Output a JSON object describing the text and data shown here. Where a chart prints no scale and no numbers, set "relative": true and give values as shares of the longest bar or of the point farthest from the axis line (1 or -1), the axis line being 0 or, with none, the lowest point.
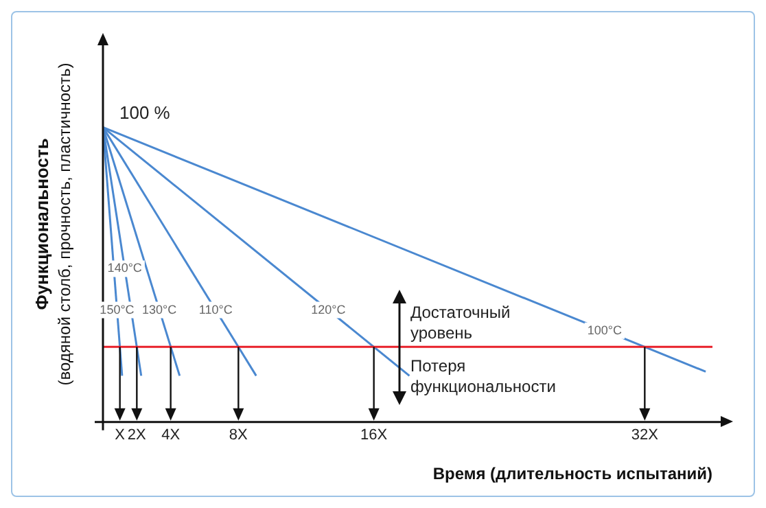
{
  "chart_data": {
    "type": "line",
    "relative": true,
    "xlabel": "Время (длительность испытаний)",
    "ylabel": "Функциональность\n(водяной столб, прочность, пластичность)",
    "xlim": [
      0,
      36
    ],
    "xticks": [
      {
        "value": 1,
        "label": "X"
      },
      {
        "value": 2,
        "label": "2X"
      },
      {
        "value": 4,
        "label": "4X"
      },
      {
        "value": 8,
        "label": "8X"
      },
      {
        "value": 16,
        "label": "16X"
      },
      {
        "value": 32,
        "label": "32X"
      }
    ],
    "series": [
      {
        "name": "150°C",
        "color": "#4a88d0",
        "x": [
          0,
          1.13
        ],
        "values": [
          1,
          0.157
        ]
      },
      {
        "name": "140°C",
        "color": "#4a88d0",
        "x": [
          0,
          2.26
        ],
        "values": [
          1,
          0.157
        ]
      },
      {
        "name": "130°C",
        "color": "#4a88d0",
        "x": [
          0,
          4.53
        ],
        "values": [
          1,
          0.157
        ]
      },
      {
        "name": "110°C",
        "color": "#4a88d0",
        "x": [
          0,
          9.05
        ],
        "values": [
          1,
          0.157
        ]
      },
      {
        "name": "120°C",
        "color": "#4a88d0",
        "x": [
          0,
          18.1
        ],
        "values": [
          1,
          0.157
        ]
      },
      {
        "name": "100°C",
        "color": "#4a88d0",
        "x": [
          0,
          35.6
        ],
        "values": [
          1,
          0.171
        ]
      }
    ],
    "ref_lines": [
      {
        "axis": "y",
        "value": 0.255,
        "color": "#e8202a"
      }
    ],
    "annotations": [
      {
        "text": "100 %",
        "x": 0,
        "y": 1
      },
      "Достаточный\nуровень",
      "Потеря\nфункциональности"
    ],
    "grid": false,
    "legend": false,
    "marker": "none",
    "line_style": "solid"
  }
}
